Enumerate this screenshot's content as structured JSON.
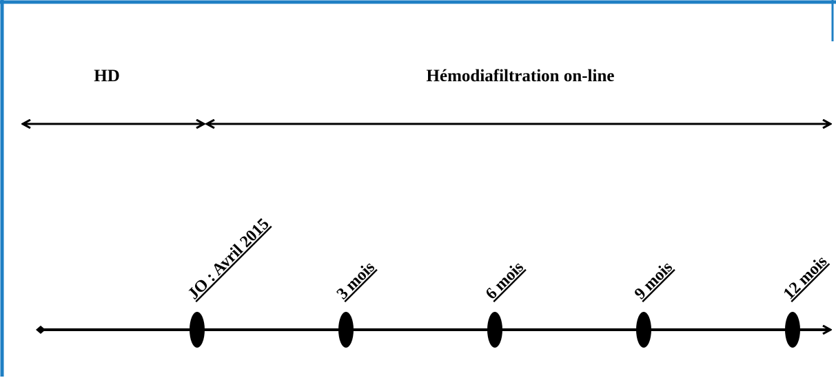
{
  "phases": {
    "left": "HD",
    "right": "Hémodiafiltration on-line"
  },
  "timeline": {
    "points": [
      "JO : Avril 2015",
      "3 mois",
      "6 mois",
      "9 mois",
      "12 mois"
    ]
  }
}
